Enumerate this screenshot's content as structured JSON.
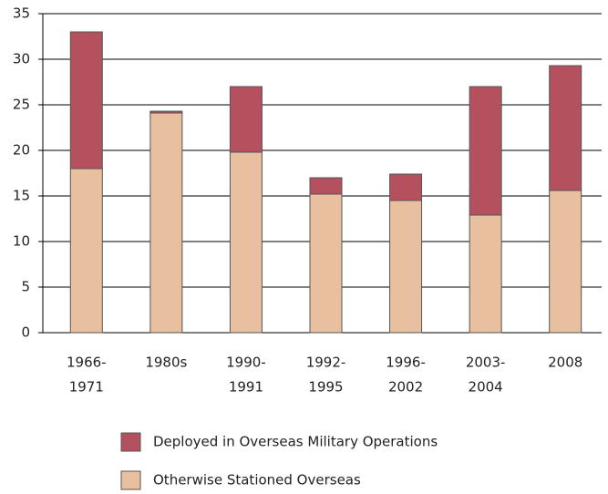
{
  "chart_data": {
    "type": "stacked_bar",
    "categories": [
      [
        "1966-",
        "1971"
      ],
      [
        "1980s"
      ],
      [
        "1990-",
        "1991"
      ],
      [
        "1992-",
        "1995"
      ],
      [
        "1996-",
        "2002"
      ],
      [
        "2003-",
        "2004"
      ],
      [
        "2008"
      ]
    ],
    "series": [
      {
        "name": "Otherwise Stationed Overseas",
        "color": "#e8c0a0",
        "values": [
          18,
          24.1,
          19.8,
          15.2,
          14.5,
          12.9,
          15.6
        ]
      },
      {
        "name": "Deployed in Overseas Military Operations",
        "color": "#b5505f",
        "values": [
          15,
          0.2,
          7.2,
          1.8,
          2.9,
          14.1,
          13.7
        ]
      }
    ],
    "ylim": [
      0,
      35
    ],
    "yticks": [
      0,
      5,
      10,
      15,
      20,
      25,
      30,
      35
    ],
    "grid": true,
    "legend": "bottom"
  }
}
